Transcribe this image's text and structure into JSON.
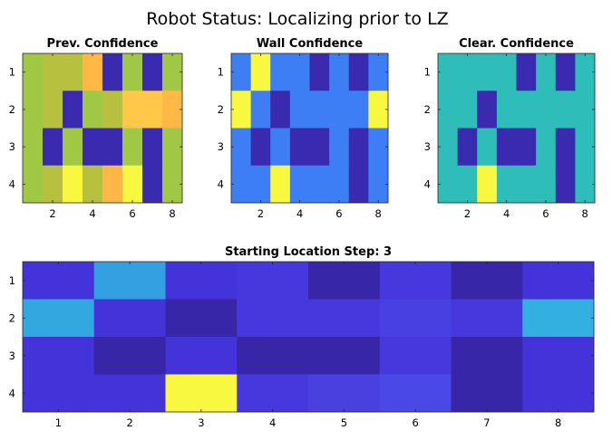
{
  "figure_title": "Robot Status: Localizing prior to LZ",
  "chart_data": [
    {
      "type": "heatmap",
      "title": "Prev. Confidence",
      "xticks": [
        2,
        4,
        6,
        8
      ],
      "yticks": [
        1,
        2,
        3,
        4
      ],
      "xlim": [
        0.5,
        8.5
      ],
      "ylim": [
        0.5,
        4.5
      ],
      "rows": [
        [
          "#a0c845",
          "#b8c040",
          "#b8c040",
          "#ffb845",
          "#3a2ab0",
          "#a0c845",
          "#3a2ab0",
          "#a0c845"
        ],
        [
          "#a0c845",
          "#b8c040",
          "#3a2ab0",
          "#a0c845",
          "#b8c040",
          "#ffc848",
          "#ffc848",
          "#ffb845"
        ],
        [
          "#a0c845",
          "#3a2ab0",
          "#a0c845",
          "#3a2ab0",
          "#3a2ab0",
          "#a0c845",
          "#3a2ab0",
          "#a0c845"
        ],
        [
          "#a0c845",
          "#b8c040",
          "#f8f840",
          "#b8c040",
          "#ffb845",
          "#f8f840",
          "#3a2ab0",
          "#a0c845"
        ]
      ]
    },
    {
      "type": "heatmap",
      "title": "Wall Confidence",
      "xticks": [
        2,
        4,
        6,
        8
      ],
      "yticks": [
        1,
        2,
        3,
        4
      ],
      "xlim": [
        0.5,
        8.5
      ],
      "ylim": [
        0.5,
        4.5
      ],
      "rows": [
        [
          "#3d7ef5",
          "#f8f840",
          "#3d7ef5",
          "#3d7ef5",
          "#3a2ab0",
          "#3d7ef5",
          "#3a2ab0",
          "#3d7ef5"
        ],
        [
          "#f8f840",
          "#3d7ef5",
          "#3a2ab0",
          "#3d7ef5",
          "#3d7ef5",
          "#3d7ef5",
          "#3d7ef5",
          "#f8f840"
        ],
        [
          "#3d7ef5",
          "#3a2ab0",
          "#3d7ef5",
          "#3a2ab0",
          "#3a2ab0",
          "#3d7ef5",
          "#3a2ab0",
          "#3d7ef5"
        ],
        [
          "#3d7ef5",
          "#3d7ef5",
          "#f8f840",
          "#3d7ef5",
          "#3d7ef5",
          "#3d7ef5",
          "#3a2ab0",
          "#3d7ef5"
        ]
      ]
    },
    {
      "type": "heatmap",
      "title": "Clear. Confidence",
      "xticks": [
        2,
        4,
        6,
        8
      ],
      "yticks": [
        1,
        2,
        3,
        4
      ],
      "xlim": [
        0.5,
        8.5
      ],
      "ylim": [
        0.5,
        4.5
      ],
      "rows": [
        [
          "#2ebdb8",
          "#2ebdb8",
          "#2ebdb8",
          "#2ebdb8",
          "#3a2ab0",
          "#2ebdb8",
          "#3a2ab0",
          "#2ebdb8"
        ],
        [
          "#2ebdb8",
          "#2ebdb8",
          "#3a2ab0",
          "#2ebdb8",
          "#2ebdb8",
          "#2ebdb8",
          "#2ebdb8",
          "#2ebdb8"
        ],
        [
          "#2ebdb8",
          "#3a2ab0",
          "#2ebdb8",
          "#3a2ab0",
          "#3a2ab0",
          "#2ebdb8",
          "#3a2ab0",
          "#2ebdb8"
        ],
        [
          "#2ebdb8",
          "#2ebdb8",
          "#f8f840",
          "#2ebdb8",
          "#2ebdb8",
          "#2ebdb8",
          "#3a2ab0",
          "#2ebdb8"
        ]
      ]
    },
    {
      "type": "heatmap",
      "title": "Starting Location Step: 3",
      "xticks": [
        1,
        2,
        3,
        4,
        5,
        6,
        7,
        8
      ],
      "yticks": [
        1,
        2,
        3,
        4
      ],
      "xlim": [
        0.5,
        8.5
      ],
      "ylim": [
        0.5,
        4.5
      ],
      "rows": [
        [
          "#4433d8",
          "#33a0e2",
          "#4433d8",
          "#4638dc",
          "#3826a8",
          "#4638dc",
          "#3826a8",
          "#4433d8"
        ],
        [
          "#33a8e0",
          "#4433d8",
          "#3826a8",
          "#4638dc",
          "#4638dc",
          "#4840e0",
          "#4638dc",
          "#33b0e0"
        ],
        [
          "#4433d8",
          "#3826a8",
          "#4433d8",
          "#3826a8",
          "#3826a8",
          "#4638dc",
          "#3826a8",
          "#4433d8"
        ],
        [
          "#4433d8",
          "#4433d8",
          "#f8f840",
          "#4638dc",
          "#4a40e0",
          "#4a48e6",
          "#3826a8",
          "#4433d8"
        ]
      ]
    }
  ]
}
